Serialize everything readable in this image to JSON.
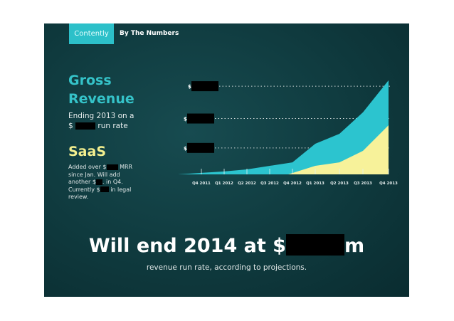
{
  "header": {
    "logo": "Contently",
    "title": "By The Numbers"
  },
  "left": {
    "gross_title_1": "Gross",
    "gross_title_2": "Revenue",
    "ending_line1": "Ending 2013 on a",
    "ending_prefix": "$",
    "ending_suffix": "run rate",
    "saas_title": "SaaS",
    "saas_l1a": "Added over $",
    "saas_l1b": "MRR",
    "saas_l2": "since Jan. Will add",
    "saas_l3a": "another $",
    "saas_l3b": ". in Q4.",
    "saas_l4a": "Currently $",
    "saas_l4b": "in legal",
    "saas_l5": "review."
  },
  "footer": {
    "headline_prefix": "Will end 2014 at $",
    "headline_suffix": "m",
    "subtext": "revenue run rate, according to projections."
  },
  "colors": {
    "gross": "#2cc4cf",
    "saas": "#f7f29a",
    "grid": "#cfd8d8",
    "background": "#0f3a3e"
  },
  "chart_data": {
    "type": "area",
    "categories": [
      "Q4 2011",
      "Q1 2012",
      "Q2 2012",
      "Q3 2012",
      "Q4 2012",
      "Q1 2013",
      "Q2 2013",
      "Q3 2013",
      "Q4 2013"
    ],
    "series": [
      {
        "values": [
          0.05,
          0.1,
          0.17,
          0.29,
          0.41,
          1.04,
          1.38,
          2.11,
          3.2
        ],
        "color": "#2cc4cf"
      },
      {
        "values": [
          null,
          null,
          null,
          null,
          0,
          0.29,
          0.41,
          0.8,
          1.67
        ],
        "color": "#f7f29a"
      }
    ],
    "y_gridlines": [
      0.9,
      1.9,
      3.0
    ],
    "y_tick_labels": [
      "$",
      "$",
      "$"
    ],
    "y_tick_values_redacted": true,
    "ylim": [
      0,
      3.3
    ],
    "grid": "dotted horizontal",
    "legend": "none"
  }
}
